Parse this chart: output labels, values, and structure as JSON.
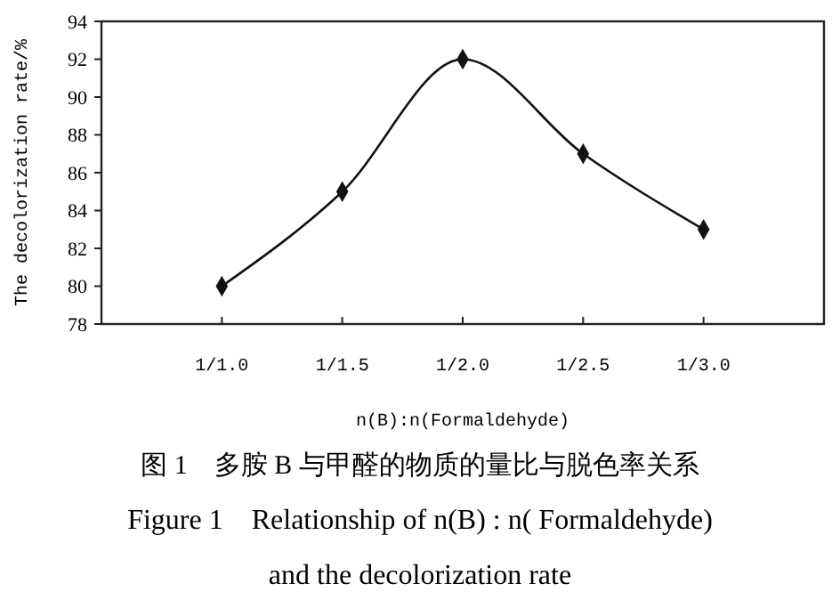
{
  "chart_data": {
    "type": "line",
    "categories": [
      "1/1.0",
      "1/1.5",
      "1/2.0",
      "1/2.5",
      "1/3.0"
    ],
    "series": [
      {
        "color": "#111111",
        "values": [
          80,
          85,
          92,
          87,
          83
        ]
      }
    ],
    "ylim": [
      78,
      94
    ],
    "yticks": [
      78,
      80,
      82,
      84,
      86,
      88,
      90,
      92,
      94
    ],
    "xlabel": "n(B):n(Formaldehyde)",
    "ylabel": "The decolorization rate/%",
    "marker": "diamond",
    "line_style": "solid",
    "annotations": [
      "图 1　多胺 B 与甲醛的物质的量比与脱色率关系",
      "Figure 1　Relationship of n(B) : n( Formaldehyde)",
      "and the decolorization rate"
    ]
  }
}
